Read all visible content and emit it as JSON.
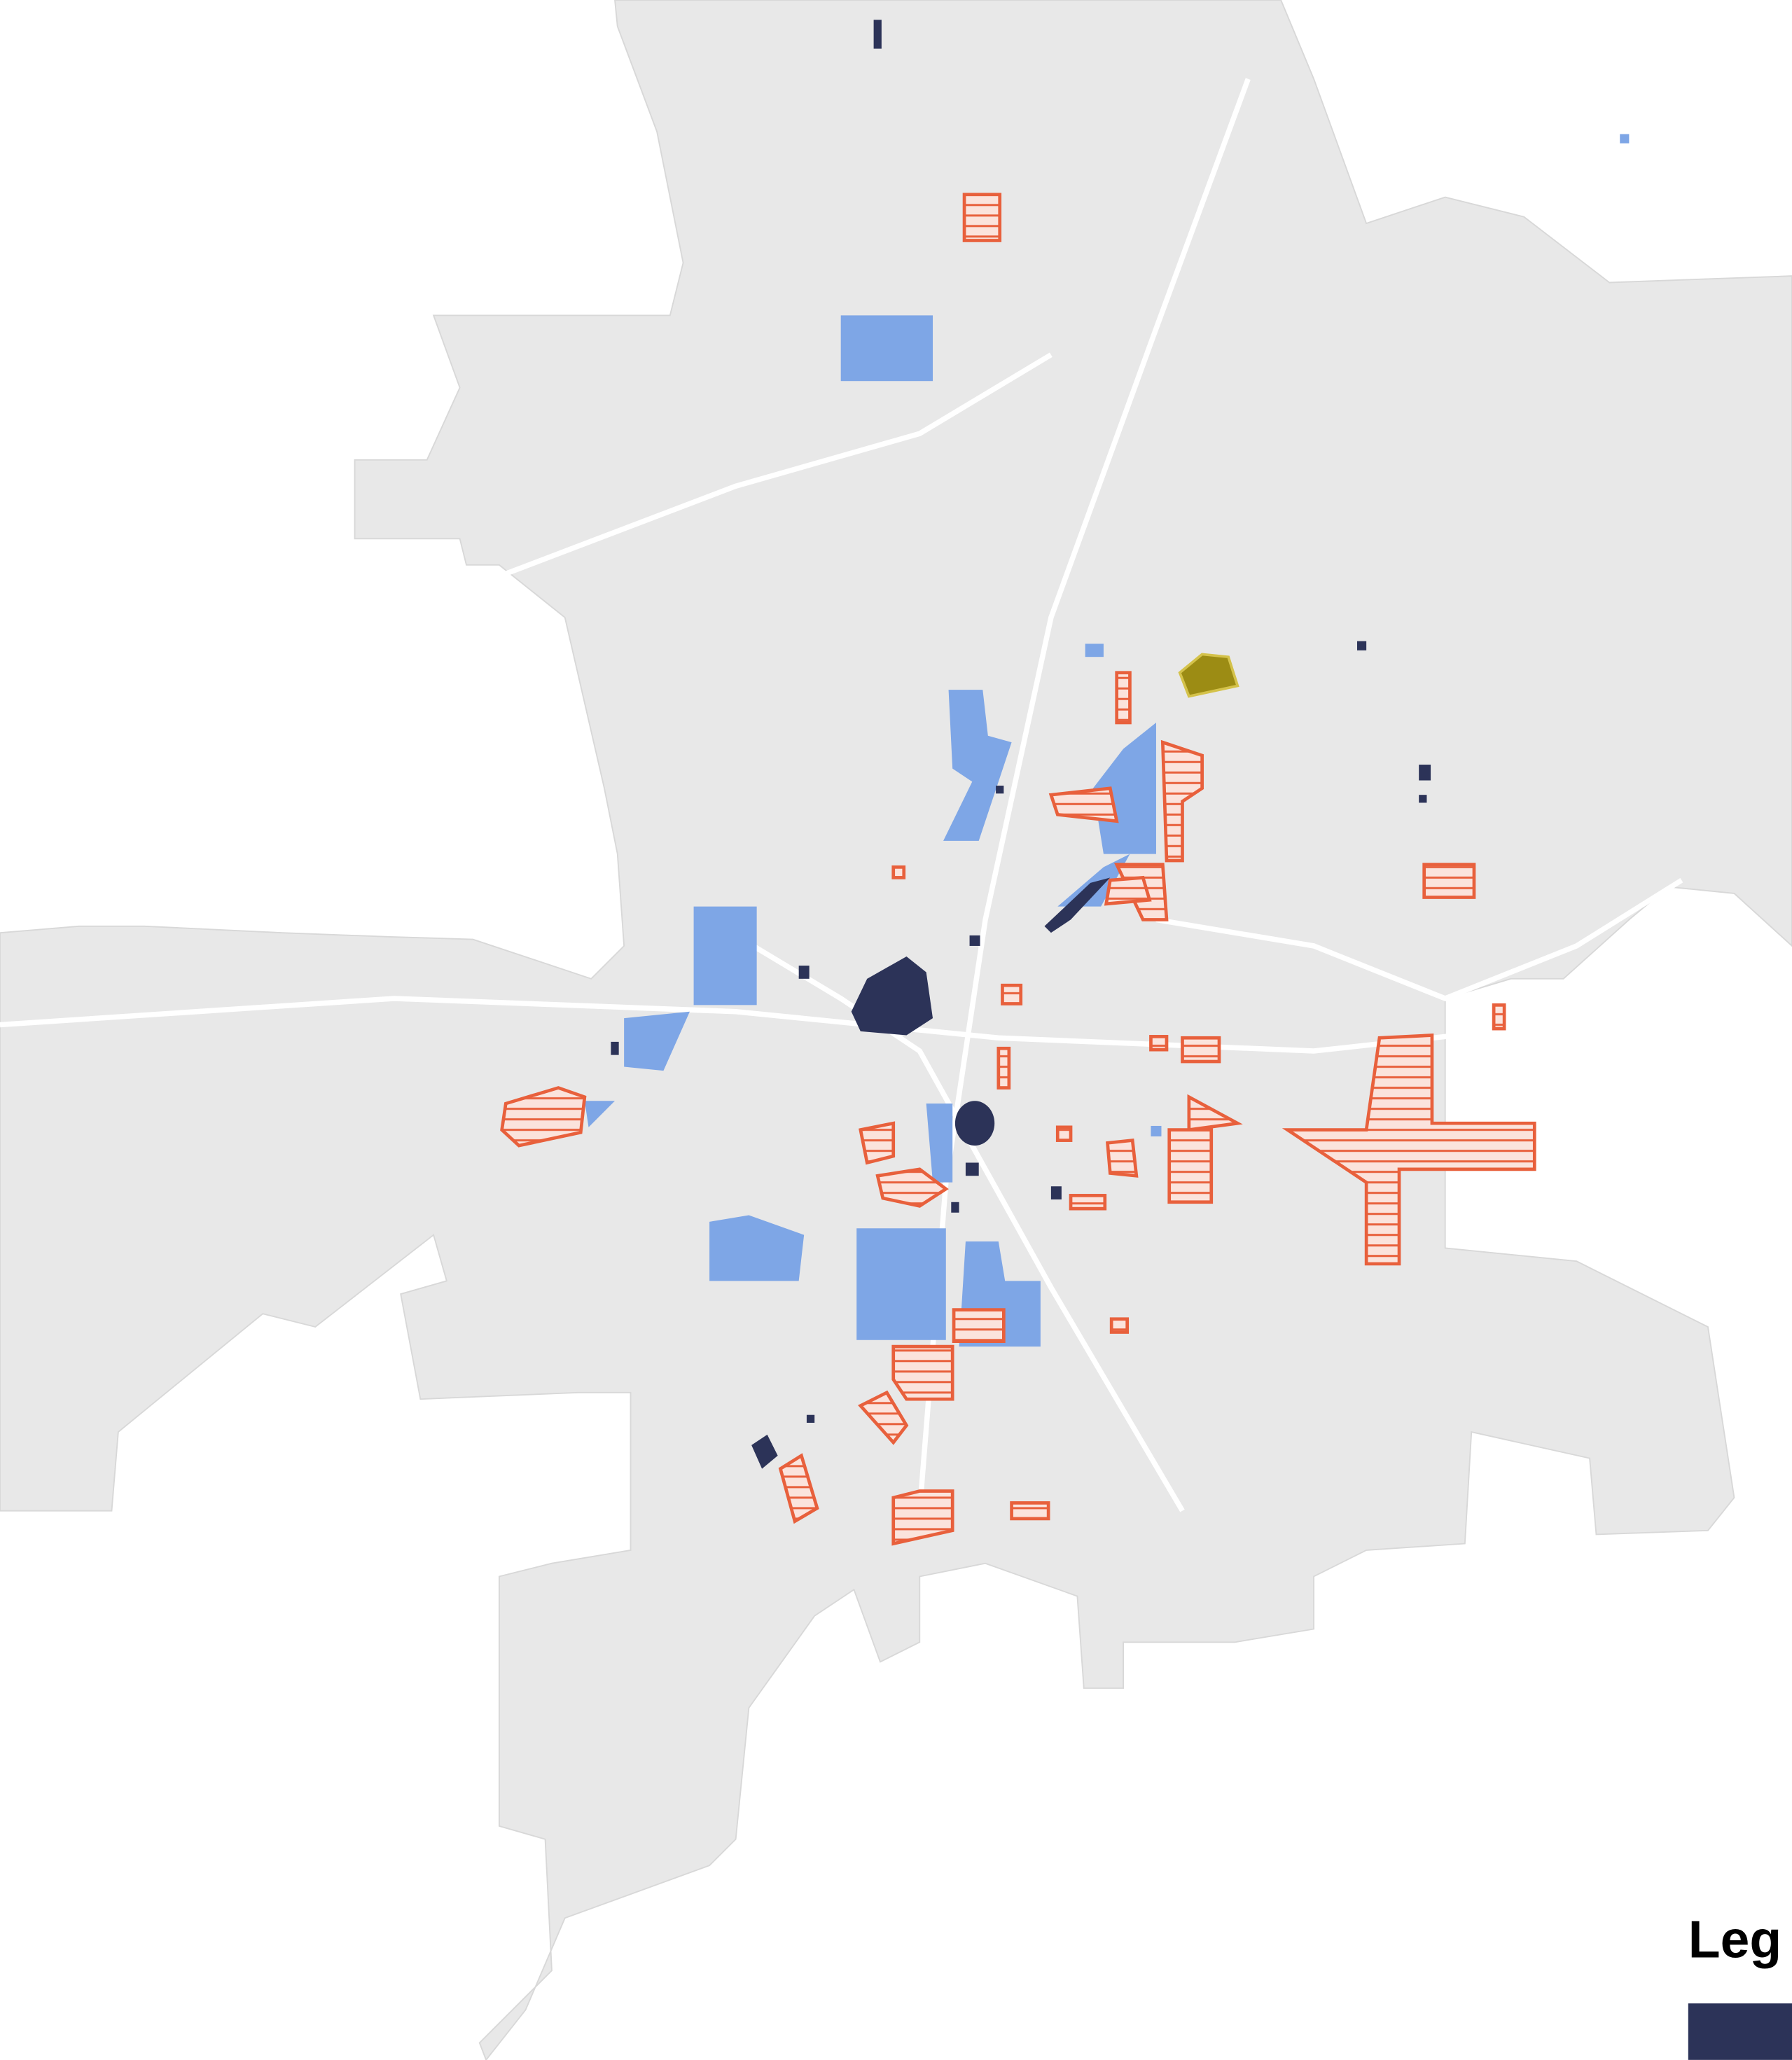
{
  "legend": {
    "title": "Leg"
  }
}
